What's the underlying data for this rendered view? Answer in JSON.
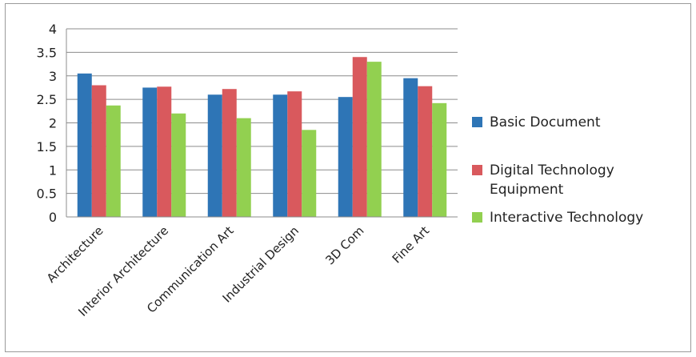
{
  "chart_data": {
    "type": "bar",
    "title": "",
    "xlabel": "",
    "ylabel": "",
    "ylim": [
      0,
      4
    ],
    "yticks": [
      "0",
      "0.5",
      "1",
      "1.5",
      "2",
      "2.5",
      "3",
      "3.5",
      "4"
    ],
    "grid": true,
    "legend_position": "right",
    "categories": [
      "Architecture",
      "Interior Architecture",
      "Communication Art",
      "Industrial Design",
      "3D Com",
      "Fine Art"
    ],
    "series": [
      {
        "name": "Basic Document",
        "color": "#2e75b6",
        "values": [
          3.05,
          2.75,
          2.6,
          2.6,
          2.55,
          2.95
        ]
      },
      {
        "name": "Digital Technology Equipment",
        "color": "#d9595d",
        "values": [
          2.8,
          2.77,
          2.72,
          2.67,
          3.4,
          2.78
        ]
      },
      {
        "name": "Interactive Technology",
        "color": "#92d050",
        "values": [
          2.37,
          2.2,
          2.1,
          1.85,
          3.3,
          2.42
        ]
      }
    ],
    "legend_lines": [
      [
        "Basic Document"
      ],
      [
        "Digital Technology",
        "Equipment"
      ],
      [
        "Interactive Technology"
      ]
    ]
  }
}
